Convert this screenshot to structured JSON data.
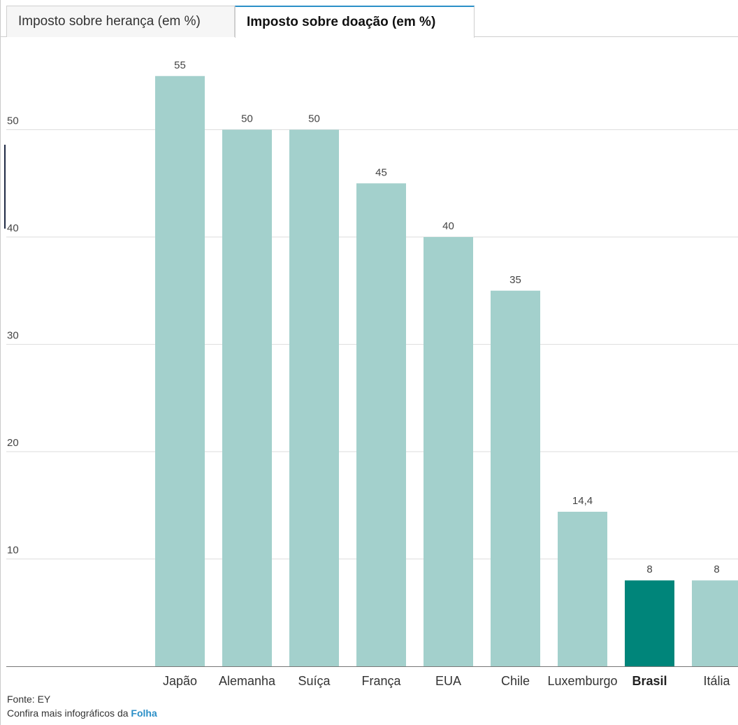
{
  "tabs": [
    {
      "label": "Imposto sobre herança (em %)",
      "active": false
    },
    {
      "label": "Imposto sobre doação (em %)",
      "active": true
    }
  ],
  "footer": {
    "source": "Fonte: EY",
    "more_prefix": "Confira mais infográficos da ",
    "more_link": "Folha"
  },
  "colors": {
    "bar": "#a3d0cc",
    "highlight": "#00857a",
    "grid": "#dedede",
    "link": "#2b8fc7"
  },
  "chart_data": {
    "type": "bar",
    "categories": [
      "Japão",
      "Alemanha",
      "Suíça",
      "França",
      "EUA",
      "Chile",
      "Luxemburgo",
      "Brasil",
      "Itália"
    ],
    "values": [
      55,
      50,
      50,
      45,
      40,
      35,
      14.4,
      8,
      8
    ],
    "value_labels": [
      "55",
      "50",
      "50",
      "45",
      "40",
      "35",
      "14,4",
      "8",
      "8"
    ],
    "highlight": "Brasil",
    "yticks": [
      10,
      20,
      30,
      40,
      50
    ],
    "ylim": [
      0,
      60
    ],
    "grid": true,
    "title": "",
    "xlabel": "",
    "ylabel": ""
  }
}
